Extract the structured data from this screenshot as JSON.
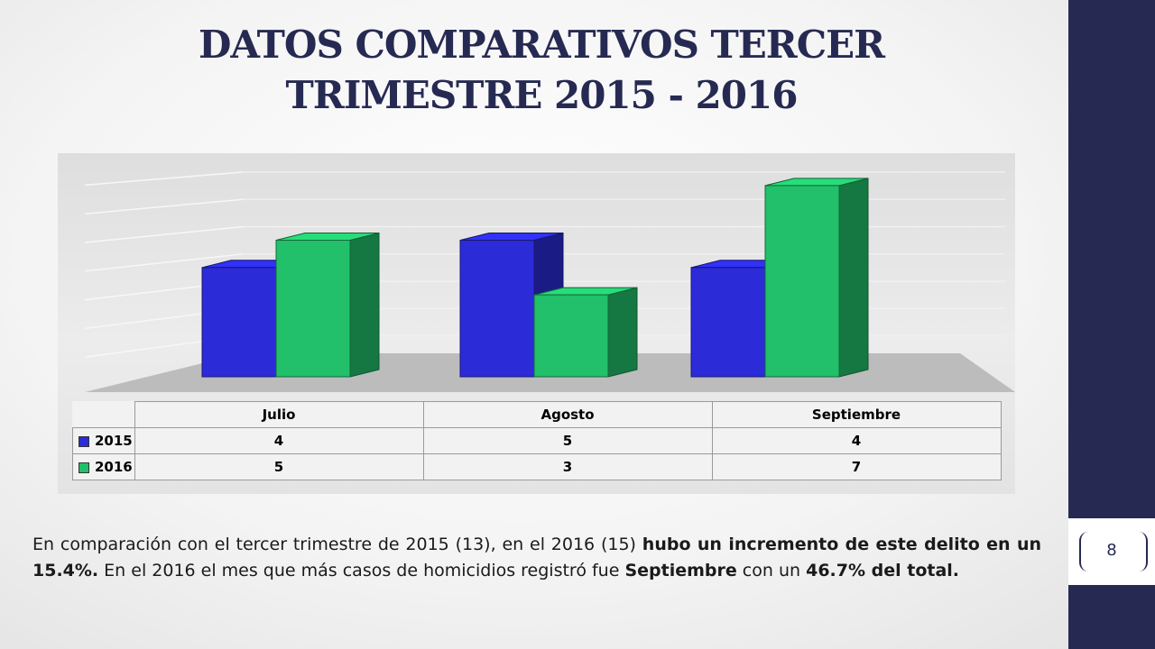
{
  "slide": {
    "title_line1": "DATOS COMPARATIVOS TERCER",
    "title_line2": "TRIMESTRE 2015 - 2016",
    "page_number": "8"
  },
  "description": {
    "part1": "En comparación con el tercer trimestre de 2015 (13), en el 2016 (15) ",
    "bold1": "hubo un incremento de este delito en un 15.4%.",
    "part2": " En el 2016 el mes que más casos de homicidios registró fue ",
    "bold2": "Septiembre",
    "part3": " con un ",
    "bold3": "46.7% del total."
  },
  "colors": {
    "series_2015": "#2b2bd8",
    "series_2016": "#22c06a",
    "sidebar": "#262a52"
  },
  "chart_data": {
    "type": "bar",
    "style": "3d-clustered-columns-with-data-table",
    "categories": [
      "Julio",
      "Agosto",
      "Septiembre"
    ],
    "series": [
      {
        "name": "2015",
        "values": [
          4,
          5,
          4
        ]
      },
      {
        "name": "2016",
        "values": [
          5,
          3,
          7
        ]
      }
    ],
    "ylim": [
      0,
      7
    ],
    "grid": true,
    "legend": "in-data-table"
  }
}
